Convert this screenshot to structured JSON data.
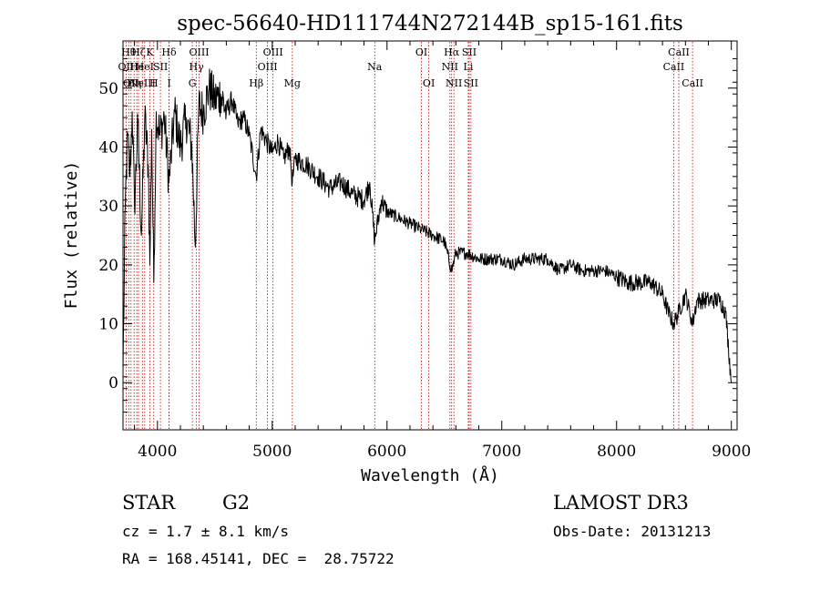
{
  "chart_data": {
    "type": "line",
    "title": "spec-56640-HD111744N272144B_sp15-161.fits",
    "xlabel": "Wavelength (Å)",
    "ylabel": "Flux (relative)",
    "xlim": [
      3700,
      9050
    ],
    "ylim": [
      -8,
      58
    ],
    "xticks": [
      4000,
      5000,
      6000,
      7000,
      8000,
      9000
    ],
    "yticks": [
      0,
      10,
      20,
      30,
      40,
      50
    ],
    "xtick_labels": [
      "4000",
      "5000",
      "6000",
      "7000",
      "8000",
      "9000"
    ],
    "ytick_labels": [
      "0",
      "10",
      "20",
      "30",
      "40",
      "50"
    ],
    "series": [
      {
        "name": "flux",
        "x": [
          3700,
          3720,
          3740,
          3760,
          3780,
          3800,
          3830,
          3860,
          3890,
          3920,
          3934,
          3950,
          3968,
          3990,
          4020,
          4060,
          4101,
          4150,
          4200,
          4250,
          4300,
          4330,
          4360,
          4400,
          4450,
          4500,
          4550,
          4600,
          4650,
          4700,
          4750,
          4800,
          4861,
          4900,
          4950,
          5000,
          5050,
          5100,
          5150,
          5175,
          5200,
          5300,
          5400,
          5500,
          5600,
          5700,
          5800,
          5850,
          5893,
          5950,
          6000,
          6100,
          6200,
          6300,
          6400,
          6500,
          6563,
          6600,
          6700,
          6800,
          6900,
          7000,
          7100,
          7200,
          7300,
          7400,
          7500,
          7600,
          7700,
          7800,
          7900,
          8000,
          8100,
          8200,
          8300,
          8400,
          8450,
          8498,
          8542,
          8600,
          8662,
          8700,
          8800,
          8900,
          8950,
          9000
        ],
        "values": [
          2,
          30,
          42,
          35,
          46,
          30,
          44,
          25,
          45,
          37,
          20,
          43,
          17,
          46,
          42,
          45,
          34,
          46,
          40,
          45,
          40,
          23,
          47,
          46,
          50,
          48,
          49,
          46,
          48,
          44,
          45,
          42,
          35,
          43,
          41,
          39,
          41,
          38,
          40,
          34,
          38,
          37,
          35,
          33,
          34,
          32,
          31,
          34,
          24,
          31,
          29,
          28,
          27,
          26,
          25,
          24,
          19,
          22,
          22,
          21,
          21,
          21,
          20,
          21,
          21,
          21,
          19,
          20,
          19,
          19,
          19,
          18,
          17,
          17,
          17,
          15,
          12,
          10,
          12,
          15,
          10,
          14,
          14,
          14,
          12,
          0
        ]
      }
    ],
    "lines": [
      {
        "x": 3727,
        "label": "OII",
        "row": 2
      },
      {
        "x": 3750,
        "label": "Hθ",
        "row": 1
      },
      {
        "x": 3770,
        "label": "OII",
        "row": 3
      },
      {
        "x": 3797,
        "label": "Hη",
        "row": 3
      },
      {
        "x": 3820,
        "label": "He",
        "row": 2
      },
      {
        "x": 3835,
        "label": "Hζ",
        "row": 1
      },
      {
        "x": 3869,
        "label": "NeIII",
        "row": 3
      },
      {
        "x": 3889,
        "label": "HeI",
        "row": 2
      },
      {
        "x": 3934,
        "label": "K",
        "row": 1
      },
      {
        "x": 3968,
        "label": "H",
        "row": 3
      },
      {
        "x": 4026,
        "label": "SII",
        "row": 2
      },
      {
        "x": 4101,
        "label": "Hδ",
        "row": 1
      },
      {
        "x": 4102,
        "label": "I",
        "row": 3
      },
      {
        "x": 4304,
        "label": "G",
        "row": 3
      },
      {
        "x": 4340,
        "label": "Hγ",
        "row": 2
      },
      {
        "x": 4363,
        "label": "OIII",
        "row": 1
      },
      {
        "x": 4861,
        "label": "Hβ",
        "row": 3
      },
      {
        "x": 4959,
        "label": "OIII",
        "row": 2
      },
      {
        "x": 5007,
        "label": "OIII",
        "row": 1
      },
      {
        "x": 5175,
        "label": "Mg",
        "row": 3
      },
      {
        "x": 5893,
        "label": "Na",
        "row": 2
      },
      {
        "x": 6300,
        "label": "OI",
        "row": 1
      },
      {
        "x": 6364,
        "label": "OI",
        "row": 3
      },
      {
        "x": 6548,
        "label": "NII",
        "row": 2
      },
      {
        "x": 6563,
        "label": "Hα",
        "row": 1
      },
      {
        "x": 6583,
        "label": "NII",
        "row": 3
      },
      {
        "x": 6708,
        "label": "Li",
        "row": 2
      },
      {
        "x": 6716,
        "label": "SII",
        "row": 1
      },
      {
        "x": 6731,
        "label": "SII",
        "row": 3
      },
      {
        "x": 8498,
        "label": "CaII",
        "row": 2
      },
      {
        "x": 8542,
        "label": "CaII",
        "row": 1
      },
      {
        "x": 8662,
        "label": "CaII",
        "row": 3
      }
    ]
  },
  "info": {
    "class_label": "STAR",
    "subclass": "G2",
    "survey": "LAMOST DR3",
    "cz": "cz = 1.7 ± 8.1 km/s",
    "obs_date": "Obs-Date: 20131213",
    "radec": "RA = 168.45141, DEC =  28.75722"
  },
  "colors": {
    "line_marker": "#c00000",
    "spectrum": "#000000",
    "axes": "#000000"
  }
}
